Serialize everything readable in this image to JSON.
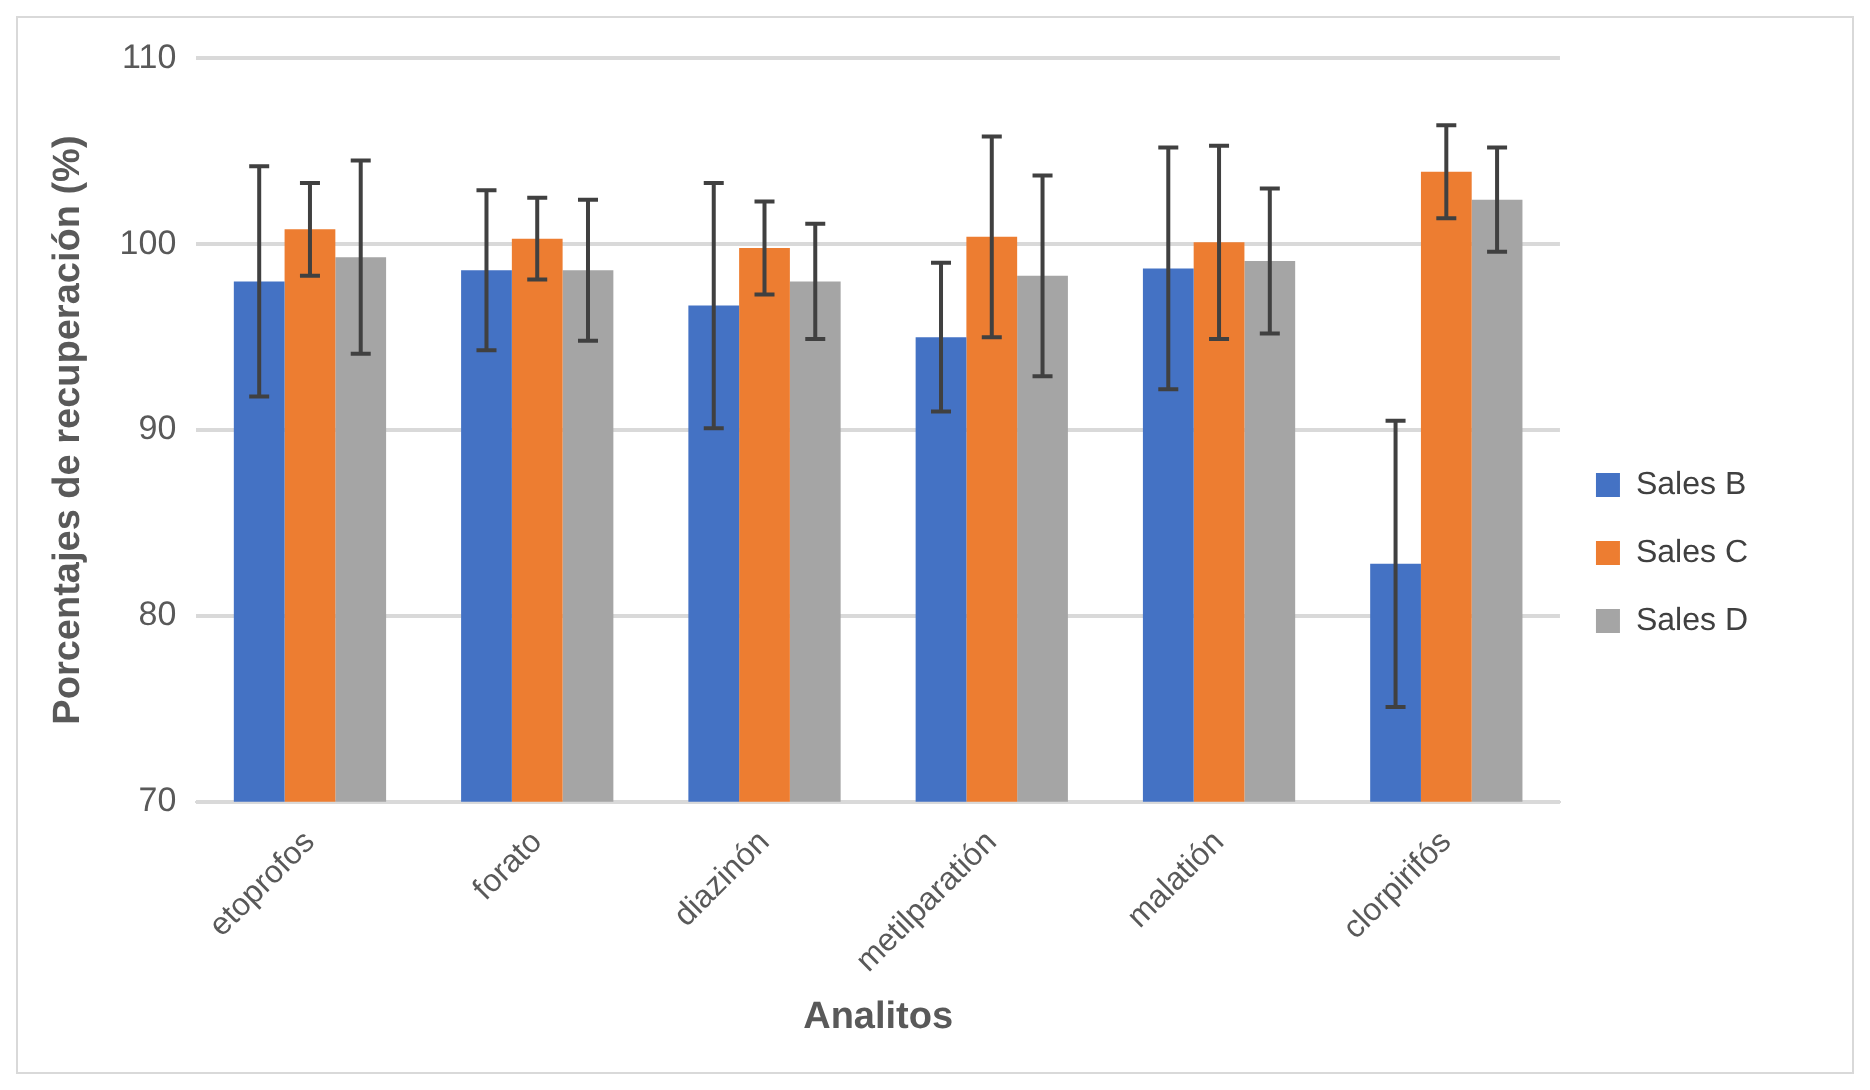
{
  "chart_data": {
    "type": "bar",
    "xlabel": "Analitos",
    "ylabel": "Porcentajes de recuperación (%)",
    "categories": [
      "etoprofos",
      "forato",
      "diazinón",
      "metilparatión",
      "malatión",
      "clorpirifós"
    ],
    "series": [
      {
        "name": "Sales B",
        "color": "#4472c4",
        "values": [
          98.0,
          98.6,
          96.7,
          95.0,
          98.7,
          82.8
        ],
        "errors": [
          6.2,
          4.3,
          6.6,
          4.0,
          6.5,
          7.7
        ]
      },
      {
        "name": "Sales C",
        "color": "#ed7d31",
        "values": [
          100.8,
          100.3,
          99.8,
          100.4,
          100.1,
          103.9
        ],
        "errors": [
          2.5,
          2.2,
          2.5,
          5.4,
          5.2,
          2.5
        ]
      },
      {
        "name": "Sales D",
        "color": "#a5a5a5",
        "values": [
          99.3,
          98.6,
          98.0,
          98.3,
          99.1,
          102.4
        ],
        "errors": [
          5.2,
          3.8,
          3.1,
          5.4,
          3.9,
          2.8
        ]
      }
    ],
    "ylim": [
      70,
      110
    ],
    "yticks": [
      70,
      80,
      90,
      100,
      110
    ],
    "grid": "y",
    "legend": "right"
  }
}
